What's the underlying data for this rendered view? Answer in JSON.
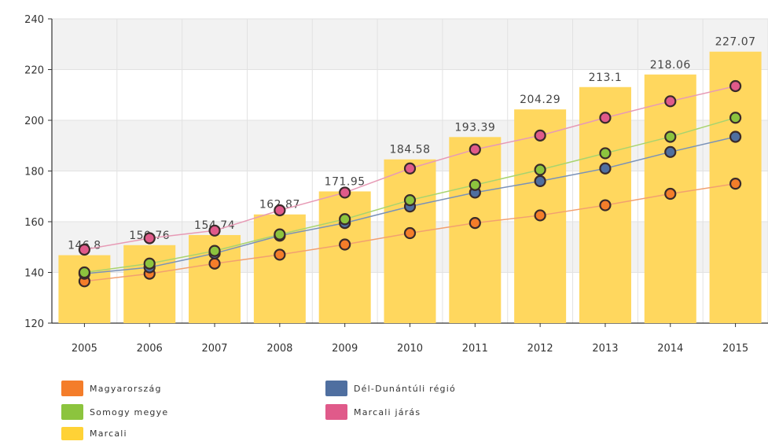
{
  "chart_data": {
    "type": "bar",
    "categories": [
      "2005",
      "2006",
      "2007",
      "2008",
      "2009",
      "2010",
      "2011",
      "2012",
      "2013",
      "2014",
      "2015"
    ],
    "ylim": [
      120,
      240
    ],
    "yticks": [
      120,
      140,
      160,
      180,
      200,
      220,
      240
    ],
    "title": "",
    "xlabel": "",
    "ylabel": "",
    "bars": {
      "name": "Marcali",
      "color": "#ffd75e",
      "values": [
        146.8,
        150.76,
        154.74,
        162.87,
        171.95,
        184.58,
        193.39,
        204.29,
        213.1,
        218.06,
        227.07
      ],
      "labels": [
        "146.8",
        "150.76",
        "154.74",
        "162.87",
        "171.95",
        "184.58",
        "193.39",
        "204.29",
        "213.1",
        "218.06",
        "227.07"
      ]
    },
    "series": [
      {
        "name": "Magyarország",
        "color": "#f47d2a",
        "line_color": "#f2a070",
        "values": [
          136.5,
          139.5,
          143.5,
          147,
          151,
          155.5,
          159.5,
          162.5,
          166.5,
          171,
          175
        ]
      },
      {
        "name": "Dél-Dunántúli régió",
        "color": "#4f6fa0",
        "line_color": "#7a92b8",
        "values": [
          139.5,
          142,
          147.5,
          154.5,
          159.5,
          166,
          171.5,
          176,
          181,
          187.5,
          193.5
        ]
      },
      {
        "name": "Somogy megye",
        "color": "#8cc43e",
        "line_color": "#a9d46e",
        "values": [
          140,
          143.5,
          148.5,
          155,
          161,
          168.5,
          174.5,
          180.5,
          187,
          193.5,
          201
        ]
      },
      {
        "name": "Marcali járás",
        "color": "#e05a8a",
        "line_color": "#e79ab5",
        "values": [
          149,
          153.5,
          156.5,
          164.5,
          171.5,
          181,
          188.5,
          194,
          201,
          207.5,
          213.5
        ]
      }
    ],
    "legend": [
      {
        "label": "Magyarország",
        "color": "#f47d2a"
      },
      {
        "label": "Dél-Dunántúli régió",
        "color": "#4f6fa0"
      },
      {
        "label": "Somogy megye",
        "color": "#8cc43e"
      },
      {
        "label": "Marcali járás",
        "color": "#e05a8a"
      },
      {
        "label": "Marcali",
        "color": "#ffd236"
      }
    ],
    "grid": true,
    "legend_position": "bottom-left"
  }
}
